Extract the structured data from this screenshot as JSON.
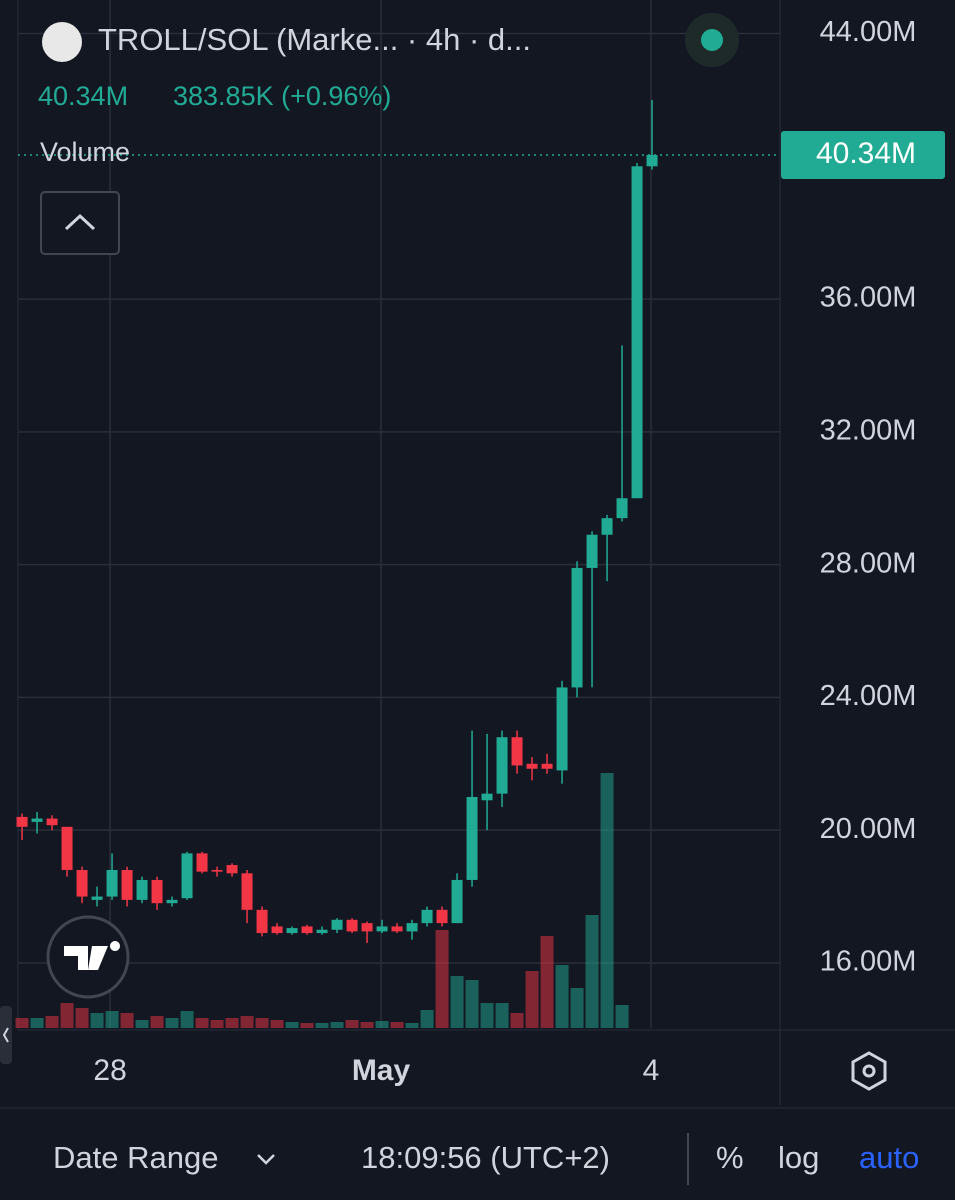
{
  "header": {
    "title": "TROLL/SOL (Marke... · 4h · d...",
    "last": "40.34M",
    "change": "383.85K (+0.96%)",
    "pane_label": "Volume"
  },
  "chart_data": {
    "type": "candlestick",
    "x": [
      0,
      1,
      2,
      3,
      4,
      5,
      6,
      7,
      8,
      9,
      10,
      11,
      12,
      13,
      14,
      15,
      16,
      17,
      18,
      19,
      20,
      21,
      22,
      23,
      24,
      25,
      26,
      27,
      28,
      29,
      30,
      31,
      32,
      33,
      34,
      35,
      36,
      37,
      38,
      39,
      40,
      41,
      42
    ],
    "open": [
      20.4,
      20.25,
      20.35,
      20.1,
      18.8,
      17.9,
      18.0,
      18.8,
      17.9,
      18.5,
      17.8,
      17.95,
      19.3,
      18.8,
      18.95,
      18.7,
      17.6,
      17.1,
      16.9,
      17.1,
      16.9,
      17.0,
      17.3,
      17.2,
      16.95,
      17.1,
      16.95,
      17.2,
      17.6,
      17.2,
      18.5,
      20.9,
      21.1,
      22.8,
      22.0,
      22.0,
      21.8,
      24.3,
      27.9,
      28.9,
      29.4,
      30.0,
      40.0
    ],
    "high": [
      20.5,
      20.55,
      20.45,
      20.1,
      18.9,
      18.3,
      19.3,
      18.9,
      18.6,
      18.6,
      18.0,
      19.35,
      19.35,
      18.9,
      19.0,
      18.8,
      17.7,
      17.2,
      17.1,
      17.15,
      17.1,
      17.35,
      17.35,
      17.25,
      17.3,
      17.2,
      17.3,
      17.7,
      17.7,
      18.7,
      23.0,
      22.9,
      23.0,
      23.0,
      22.2,
      22.3,
      24.5,
      28.1,
      29.0,
      29.5,
      34.6,
      40.1,
      42.0
    ],
    "low": [
      19.7,
      19.9,
      20.0,
      18.6,
      17.8,
      17.7,
      17.9,
      17.7,
      17.8,
      17.6,
      17.7,
      17.9,
      18.7,
      18.6,
      18.6,
      17.2,
      16.8,
      16.85,
      16.85,
      16.85,
      16.85,
      16.9,
      16.9,
      16.6,
      16.9,
      16.9,
      16.7,
      17.1,
      17.1,
      17.2,
      18.3,
      20.0,
      20.7,
      21.7,
      21.5,
      21.7,
      21.4,
      24.0,
      24.3,
      27.5,
      29.3,
      30.0,
      39.9
    ],
    "close": [
      20.1,
      20.35,
      20.15,
      18.8,
      18.0,
      18.0,
      18.8,
      17.9,
      18.5,
      17.8,
      17.9,
      19.3,
      18.75,
      18.75,
      18.7,
      17.6,
      16.9,
      16.9,
      17.05,
      16.9,
      17.0,
      17.3,
      16.95,
      16.95,
      17.1,
      16.95,
      17.2,
      17.6,
      17.2,
      18.5,
      21.0,
      21.1,
      22.8,
      21.95,
      21.85,
      21.85,
      24.3,
      27.9,
      28.9,
      29.4,
      30.0,
      40.0,
      40.34
    ],
    "volume": [
      10,
      10,
      12,
      25,
      20,
      15,
      17,
      15,
      8,
      12,
      10,
      17,
      10,
      8,
      10,
      12,
      10,
      8,
      6,
      5,
      5,
      6,
      8,
      6,
      7,
      6,
      5,
      18,
      98,
      52,
      48,
      25,
      25,
      15,
      57,
      92,
      63,
      40,
      113,
      255,
      23,
      0,
      0
    ],
    "volume_lim": [
      0,
      260
    ],
    "up_color": "#22ab94",
    "down_color": "#f23645",
    "xlim": [
      -0.27,
      50.53
    ],
    "ylim": [
      14.04,
      45.01
    ],
    "xticks": [
      {
        "value": 5.87,
        "label": "28"
      },
      {
        "value": 23.93,
        "label": "May"
      },
      {
        "value": 41.93,
        "label": "4"
      }
    ],
    "yticks": [
      {
        "value": 16,
        "label": "16.00M"
      },
      {
        "value": 20,
        "label": "20.00M"
      },
      {
        "value": 24,
        "label": "24.00M"
      },
      {
        "value": 28,
        "label": "28.00M"
      },
      {
        "value": 32,
        "label": "32.00M"
      },
      {
        "value": 36,
        "label": "36.00M"
      },
      {
        "value": 44,
        "label": "44.00M"
      }
    ],
    "last_price": {
      "value": 40.34,
      "label": "40.34M"
    },
    "grid": true
  },
  "toolbar": {
    "range": "Date Range",
    "time": "18:09:56 (UTC+2)",
    "percent": "%",
    "log": "log",
    "auto": "auto"
  }
}
